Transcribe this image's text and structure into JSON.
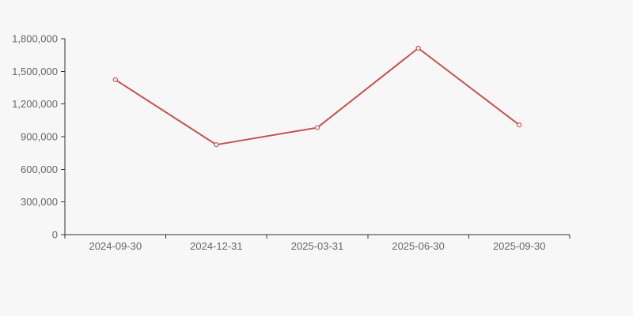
{
  "page": {
    "background_color": "#f7f7f7"
  },
  "chart_data": {
    "type": "line",
    "title": "",
    "xlabel": "",
    "ylabel": "",
    "categories": [
      "2024-09-30",
      "2024-12-31",
      "2025-03-31",
      "2025-06-30",
      "2025-09-30"
    ],
    "values": [
      1423000,
      826000,
      983000,
      1713000,
      1008000
    ],
    "ylim": [
      0,
      1800000
    ],
    "y_tick_step": 300000,
    "y_tick_labels": [
      "0",
      "300,000",
      "600,000",
      "900,000",
      "1,200,000",
      "1,500,000",
      "1,800,000"
    ],
    "grid": false,
    "legend": "none",
    "marker": "open-circle",
    "line_color": "#c5524d",
    "marker_fill": "#ffffff",
    "axis_color": "#333333",
    "label_color": "#666666"
  }
}
